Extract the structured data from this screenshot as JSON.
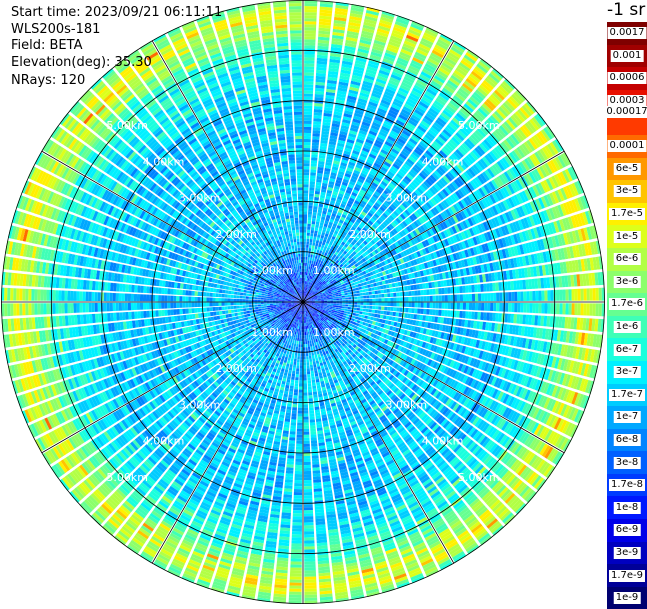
{
  "header": {
    "start_time": "Start time: 2023/09/21 06:11:11",
    "device": "WLS200s-181",
    "field": "Field: BETA",
    "elevation": "Elevation(deg): 35.30",
    "nrays": "NRays: 120"
  },
  "colorbar": {
    "unit": "-1 sr",
    "labels": [
      "0.0017",
      "0.001",
      "0.0006",
      "0.0003",
      "0.00017",
      "0.0001",
      "6e-5",
      "3e-5",
      "1.7e-5",
      "1e-5",
      "6e-6",
      "3e-6",
      "1.7e-6",
      "1e-6",
      "6e-7",
      "3e-7",
      "1.7e-7",
      "1e-7",
      "6e-8",
      "3e-8",
      "1.7e-8",
      "1e-8",
      "6e-9",
      "3e-9",
      "1.7e-9",
      "1e-9"
    ],
    "colors": [
      "#7f0000",
      "#a00000",
      "#c40000",
      "#e81000",
      "#ff3a00",
      "#ff6a00",
      "#ff9800",
      "#ffc400",
      "#fff000",
      "#ddff1a",
      "#b2ff45",
      "#8cff6b",
      "#66ff91",
      "#3fffb7",
      "#1affdd",
      "#00f0ff",
      "#00ccff",
      "#00a8ff",
      "#0084ff",
      "#0060ff",
      "#003cff",
      "#0018ff",
      "#0000e8",
      "#0000c0",
      "#000098",
      "#000070"
    ]
  },
  "chart_data": {
    "type": "heatmap",
    "projection": "polar (PPI scan)",
    "field": "BETA",
    "elevation_deg": 35.3,
    "n_rays": 120,
    "range_rings_km": [
      1.0,
      2.0,
      3.0,
      4.0,
      5.0,
      6.0
    ],
    "ring_labels": [
      "1.00km",
      "2.00km",
      "3.00km",
      "4.00km",
      "5.00km",
      "6.00km"
    ],
    "max_range_km": 6.0,
    "spoke_interval_deg": 30,
    "color_scale": "log",
    "value_range": [
      1e-09,
      0.0017
    ],
    "radial_profile": {
      "range_km": [
        0.0,
        0.5,
        1.0,
        1.5,
        2.0,
        2.5,
        3.0,
        3.5,
        4.0,
        4.5,
        5.0,
        5.5,
        5.7,
        5.9,
        6.0
      ],
      "typical_value": [
        1e-08,
        3e-08,
        1e-07,
        1.7e-07,
        1.7e-07,
        1.7e-07,
        1.7e-07,
        1.7e-07,
        1.7e-07,
        3e-07,
        6e-07,
        6e-06,
        1e-05,
        3e-06,
        1e-06
      ]
    }
  }
}
